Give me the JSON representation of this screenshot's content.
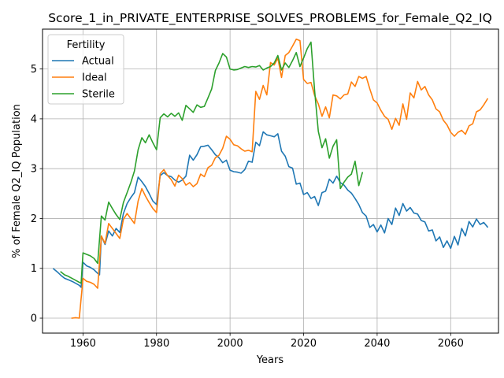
{
  "chart_data": {
    "type": "line",
    "title": "Score_1_in_PRIVATE_ENTERPRISE_SOLVES_PROBLEMS_for_Female_Q2_IQ",
    "xlabel": "Years",
    "ylabel": "% of Female Q2_IQ Population",
    "xlim": [
      1949,
      2073
    ],
    "ylim": [
      -0.3,
      5.8
    ],
    "xticks": [
      1960,
      1980,
      2000,
      2020,
      2040,
      2060
    ],
    "yticks": [
      0,
      1,
      2,
      3,
      4,
      5
    ],
    "grid": true,
    "legend": {
      "title": "Fertility",
      "position": "top-left"
    },
    "series": [
      {
        "name": "Actual",
        "color": "#1f77b4",
        "points": [
          [
            1952,
            0.99
          ],
          [
            1953,
            0.93
          ],
          [
            1954,
            0.86
          ],
          [
            1955,
            0.8
          ],
          [
            1956,
            0.77
          ],
          [
            1957,
            0.74
          ],
          [
            1958,
            0.7
          ],
          [
            1959,
            0.66
          ],
          [
            1959.5,
            0.62
          ],
          [
            1960,
            1.12
          ],
          [
            1961,
            1.05
          ],
          [
            1962,
            1.02
          ],
          [
            1963,
            0.97
          ],
          [
            1964,
            0.9
          ],
          [
            1964.5,
            0.87
          ],
          [
            1965,
            1.65
          ],
          [
            1966,
            1.48
          ],
          [
            1967,
            1.75
          ],
          [
            1968,
            1.65
          ],
          [
            1969,
            1.8
          ],
          [
            1970,
            1.72
          ],
          [
            1971,
            2.1
          ],
          [
            1972,
            2.3
          ],
          [
            1973,
            2.42
          ],
          [
            1974,
            2.52
          ],
          [
            1975,
            2.83
          ],
          [
            1976,
            2.74
          ],
          [
            1977,
            2.64
          ],
          [
            1978,
            2.5
          ],
          [
            1979,
            2.35
          ],
          [
            1980,
            2.28
          ],
          [
            1981,
            2.86
          ],
          [
            1982,
            2.92
          ],
          [
            1983,
            2.86
          ],
          [
            1984,
            2.84
          ],
          [
            1985,
            2.77
          ],
          [
            1986,
            2.73
          ],
          [
            1987,
            2.77
          ],
          [
            1988,
            2.85
          ],
          [
            1989,
            3.27
          ],
          [
            1990,
            3.17
          ],
          [
            1991,
            3.28
          ],
          [
            1992,
            3.44
          ],
          [
            1993,
            3.45
          ],
          [
            1994,
            3.47
          ],
          [
            1995,
            3.38
          ],
          [
            1996,
            3.28
          ],
          [
            1997,
            3.22
          ],
          [
            1998,
            3.12
          ],
          [
            1999,
            3.17
          ],
          [
            2000,
            2.97
          ],
          [
            2001,
            2.94
          ],
          [
            2002,
            2.93
          ],
          [
            2003,
            2.91
          ],
          [
            2004,
            2.98
          ],
          [
            2005,
            3.15
          ],
          [
            2006,
            3.13
          ],
          [
            2007,
            3.53
          ],
          [
            2008,
            3.46
          ],
          [
            2009,
            3.74
          ],
          [
            2010,
            3.68
          ],
          [
            2011,
            3.66
          ],
          [
            2012,
            3.64
          ],
          [
            2013,
            3.7
          ],
          [
            2014,
            3.35
          ],
          [
            2015,
            3.25
          ],
          [
            2016,
            3.04
          ],
          [
            2017,
            3.01
          ],
          [
            2018,
            2.69
          ],
          [
            2019,
            2.71
          ],
          [
            2020,
            2.48
          ],
          [
            2021,
            2.52
          ],
          [
            2022,
            2.4
          ],
          [
            2023,
            2.44
          ],
          [
            2024,
            2.26
          ],
          [
            2025,
            2.52
          ],
          [
            2026,
            2.55
          ],
          [
            2027,
            2.79
          ],
          [
            2028,
            2.71
          ],
          [
            2029,
            2.85
          ],
          [
            2030,
            2.72
          ],
          [
            2031,
            2.67
          ],
          [
            2032,
            2.57
          ],
          [
            2033,
            2.51
          ],
          [
            2034,
            2.4
          ],
          [
            2035,
            2.28
          ],
          [
            2036,
            2.12
          ],
          [
            2037,
            2.05
          ],
          [
            2038,
            1.82
          ],
          [
            2039,
            1.88
          ],
          [
            2040,
            1.73
          ],
          [
            2041,
            1.87
          ],
          [
            2042,
            1.71
          ],
          [
            2043,
            2.0
          ],
          [
            2044,
            1.88
          ],
          [
            2045,
            2.21
          ],
          [
            2046,
            2.06
          ],
          [
            2047,
            2.3
          ],
          [
            2048,
            2.15
          ],
          [
            2049,
            2.22
          ],
          [
            2050,
            2.11
          ],
          [
            2051,
            2.09
          ],
          [
            2052,
            1.96
          ],
          [
            2053,
            1.93
          ],
          [
            2054,
            1.75
          ],
          [
            2055,
            1.77
          ],
          [
            2056,
            1.55
          ],
          [
            2057,
            1.63
          ],
          [
            2058,
            1.42
          ],
          [
            2059,
            1.55
          ],
          [
            2060,
            1.4
          ],
          [
            2061,
            1.64
          ],
          [
            2062,
            1.47
          ],
          [
            2063,
            1.8
          ],
          [
            2064,
            1.65
          ],
          [
            2065,
            1.94
          ],
          [
            2066,
            1.83
          ],
          [
            2067,
            1.99
          ],
          [
            2068,
            1.88
          ],
          [
            2069,
            1.92
          ],
          [
            2070,
            1.83
          ]
        ]
      },
      {
        "name": "Ideal",
        "color": "#ff7f0e",
        "points": [
          [
            1957,
            0.0
          ],
          [
            1958,
            0.01
          ],
          [
            1959,
            0.0
          ],
          [
            1960,
            0.8
          ],
          [
            1961,
            0.74
          ],
          [
            1962,
            0.72
          ],
          [
            1963,
            0.68
          ],
          [
            1964,
            0.6
          ],
          [
            1965,
            1.65
          ],
          [
            1966,
            1.5
          ],
          [
            1967,
            1.9
          ],
          [
            1968,
            1.8
          ],
          [
            1969,
            1.7
          ],
          [
            1970,
            1.6
          ],
          [
            1971,
            1.98
          ],
          [
            1972,
            2.1
          ],
          [
            1973,
            2.0
          ],
          [
            1974,
            1.9
          ],
          [
            1975,
            2.35
          ],
          [
            1976,
            2.6
          ],
          [
            1977,
            2.45
          ],
          [
            1978,
            2.32
          ],
          [
            1979,
            2.2
          ],
          [
            1980,
            2.12
          ],
          [
            1981,
            2.9
          ],
          [
            1982,
            2.98
          ],
          [
            1983,
            2.86
          ],
          [
            1984,
            2.78
          ],
          [
            1985,
            2.65
          ],
          [
            1986,
            2.87
          ],
          [
            1987,
            2.8
          ],
          [
            1988,
            2.67
          ],
          [
            1989,
            2.72
          ],
          [
            1990,
            2.64
          ],
          [
            1991,
            2.7
          ],
          [
            1992,
            2.89
          ],
          [
            1993,
            2.84
          ],
          [
            1994,
            3.02
          ],
          [
            1995,
            3.07
          ],
          [
            1996,
            3.22
          ],
          [
            1997,
            3.27
          ],
          [
            1998,
            3.41
          ],
          [
            1999,
            3.65
          ],
          [
            2000,
            3.59
          ],
          [
            2001,
            3.48
          ],
          [
            2002,
            3.46
          ],
          [
            2003,
            3.4
          ],
          [
            2004,
            3.35
          ],
          [
            2005,
            3.37
          ],
          [
            2006,
            3.34
          ],
          [
            2007,
            4.55
          ],
          [
            2008,
            4.39
          ],
          [
            2009,
            4.67
          ],
          [
            2010,
            4.48
          ],
          [
            2011,
            5.13
          ],
          [
            2012,
            5.08
          ],
          [
            2013,
            5.22
          ],
          [
            2014,
            4.83
          ],
          [
            2015,
            5.27
          ],
          [
            2016,
            5.33
          ],
          [
            2017,
            5.46
          ],
          [
            2018,
            5.6
          ],
          [
            2019,
            5.57
          ],
          [
            2020,
            4.79
          ],
          [
            2021,
            4.71
          ],
          [
            2022,
            4.73
          ],
          [
            2023,
            4.47
          ],
          [
            2024,
            4.3
          ],
          [
            2025,
            4.05
          ],
          [
            2026,
            4.24
          ],
          [
            2027,
            4.02
          ],
          [
            2028,
            4.48
          ],
          [
            2029,
            4.46
          ],
          [
            2030,
            4.4
          ],
          [
            2031,
            4.48
          ],
          [
            2032,
            4.5
          ],
          [
            2033,
            4.74
          ],
          [
            2034,
            4.65
          ],
          [
            2035,
            4.85
          ],
          [
            2036,
            4.81
          ],
          [
            2037,
            4.85
          ],
          [
            2038,
            4.6
          ],
          [
            2039,
            4.38
          ],
          [
            2040,
            4.32
          ],
          [
            2041,
            4.17
          ],
          [
            2042,
            4.05
          ],
          [
            2043,
            3.99
          ],
          [
            2044,
            3.79
          ],
          [
            2045,
            4.01
          ],
          [
            2046,
            3.87
          ],
          [
            2047,
            4.3
          ],
          [
            2048,
            3.99
          ],
          [
            2049,
            4.52
          ],
          [
            2050,
            4.42
          ],
          [
            2051,
            4.75
          ],
          [
            2052,
            4.58
          ],
          [
            2053,
            4.65
          ],
          [
            2054,
            4.48
          ],
          [
            2055,
            4.38
          ],
          [
            2056,
            4.2
          ],
          [
            2057,
            4.14
          ],
          [
            2058,
            3.97
          ],
          [
            2059,
            3.88
          ],
          [
            2060,
            3.73
          ],
          [
            2061,
            3.65
          ],
          [
            2062,
            3.73
          ],
          [
            2063,
            3.77
          ],
          [
            2064,
            3.69
          ],
          [
            2065,
            3.86
          ],
          [
            2066,
            3.9
          ],
          [
            2067,
            4.14
          ],
          [
            2068,
            4.18
          ],
          [
            2069,
            4.28
          ],
          [
            2070,
            4.4
          ]
        ]
      },
      {
        "name": "Sterile",
        "color": "#2ca02c",
        "points": [
          [
            1954,
            0.93
          ],
          [
            1955,
            0.87
          ],
          [
            1956,
            0.84
          ],
          [
            1957,
            0.8
          ],
          [
            1958,
            0.76
          ],
          [
            1959,
            0.72
          ],
          [
            1959.5,
            0.7
          ],
          [
            1960,
            1.31
          ],
          [
            1961,
            1.28
          ],
          [
            1962,
            1.25
          ],
          [
            1963,
            1.2
          ],
          [
            1964,
            1.1
          ],
          [
            1965,
            2.05
          ],
          [
            1966,
            1.97
          ],
          [
            1967,
            2.33
          ],
          [
            1968,
            2.2
          ],
          [
            1969,
            2.08
          ],
          [
            1970,
            1.98
          ],
          [
            1971,
            2.32
          ],
          [
            1972,
            2.52
          ],
          [
            1973,
            2.72
          ],
          [
            1974,
            2.95
          ],
          [
            1975,
            3.38
          ],
          [
            1976,
            3.62
          ],
          [
            1977,
            3.52
          ],
          [
            1978,
            3.68
          ],
          [
            1979,
            3.52
          ],
          [
            1980,
            3.38
          ],
          [
            1981,
            4.02
          ],
          [
            1982,
            4.1
          ],
          [
            1983,
            4.04
          ],
          [
            1984,
            4.11
          ],
          [
            1985,
            4.05
          ],
          [
            1986,
            4.12
          ],
          [
            1987,
            3.97
          ],
          [
            1988,
            4.27
          ],
          [
            1989,
            4.2
          ],
          [
            1990,
            4.13
          ],
          [
            1991,
            4.28
          ],
          [
            1992,
            4.23
          ],
          [
            1993,
            4.25
          ],
          [
            1994,
            4.42
          ],
          [
            1995,
            4.6
          ],
          [
            1996,
            4.97
          ],
          [
            1997,
            5.12
          ],
          [
            1998,
            5.31
          ],
          [
            1999,
            5.24
          ],
          [
            2000,
            5.0
          ],
          [
            2001,
            4.98
          ],
          [
            2002,
            4.99
          ],
          [
            2003,
            5.02
          ],
          [
            2004,
            5.05
          ],
          [
            2005,
            5.03
          ],
          [
            2006,
            5.05
          ],
          [
            2007,
            5.04
          ],
          [
            2008,
            5.07
          ],
          [
            2009,
            4.98
          ],
          [
            2010,
            5.02
          ],
          [
            2011,
            5.05
          ],
          [
            2012,
            5.12
          ],
          [
            2013,
            5.27
          ],
          [
            2014,
            4.98
          ],
          [
            2015,
            5.12
          ],
          [
            2016,
            5.03
          ],
          [
            2017,
            5.17
          ],
          [
            2018,
            5.33
          ],
          [
            2019,
            5.05
          ],
          [
            2020,
            5.22
          ],
          [
            2021,
            5.41
          ],
          [
            2022,
            5.54
          ],
          [
            2023,
            4.57
          ],
          [
            2024,
            3.75
          ],
          [
            2025,
            3.42
          ],
          [
            2026,
            3.6
          ],
          [
            2027,
            3.21
          ],
          [
            2028,
            3.45
          ],
          [
            2029,
            3.58
          ],
          [
            2030,
            2.6
          ],
          [
            2031,
            2.73
          ],
          [
            2032,
            2.83
          ],
          [
            2033,
            2.89
          ],
          [
            2034,
            3.15
          ],
          [
            2035,
            2.66
          ],
          [
            2036,
            2.92
          ]
        ]
      }
    ]
  }
}
